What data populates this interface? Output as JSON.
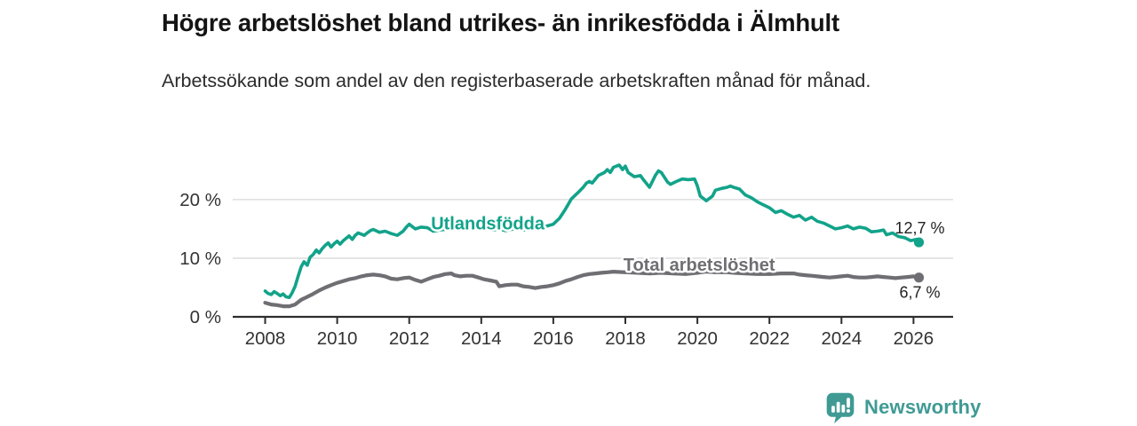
{
  "title": "Högre arbetslöshet bland utrikes- än inrikesfödda i Älmhult",
  "subtitle": "Arbetssökande som andel av den registerbaserade arbetskraften månad för månad.",
  "footer": {
    "brand": "Newsworthy",
    "brand_color": "#3f9a94",
    "logo_icon": "bar-chart-speech-bubble"
  },
  "chart_data": {
    "type": "line",
    "title": "",
    "xlabel": "",
    "ylabel": "",
    "grid": "horizontal",
    "x_axis": {
      "min": 2007.1,
      "max": 2027.1,
      "ticks": [
        2008,
        2010,
        2012,
        2014,
        2016,
        2018,
        2020,
        2022,
        2024,
        2026
      ],
      "tick_labels": [
        "2008",
        "2010",
        "2012",
        "2014",
        "2016",
        "2018",
        "2020",
        "2022",
        "2024",
        "2026"
      ]
    },
    "y_axis": {
      "min": 0,
      "max": 28.3,
      "ticks": [
        0,
        10,
        20
      ],
      "tick_labels": [
        "0 %",
        "10 %",
        "20 %"
      ]
    },
    "colors": {
      "grid": "#d9d9d9",
      "axis": "#2e2e2e",
      "tick_text": "#333333",
      "value_text": "#222222"
    },
    "series": [
      {
        "id": "total",
        "name": "Total arbetslöshet",
        "color": "#6e6e73",
        "width": 4.2,
        "end_label": "6,7 %",
        "end_label_position": "below",
        "label": {
          "x": 2020.05,
          "y": 8.95
        },
        "points": [
          [
            2008.0,
            2.4
          ],
          [
            2008.17,
            2.1
          ],
          [
            2008.33,
            2.0
          ],
          [
            2008.5,
            1.8
          ],
          [
            2008.67,
            1.8
          ],
          [
            2008.83,
            2.1
          ],
          [
            2009.0,
            2.9
          ],
          [
            2009.17,
            3.4
          ],
          [
            2009.33,
            3.9
          ],
          [
            2009.5,
            4.5
          ],
          [
            2009.67,
            5.0
          ],
          [
            2009.83,
            5.4
          ],
          [
            2010.0,
            5.8
          ],
          [
            2010.17,
            6.1
          ],
          [
            2010.33,
            6.4
          ],
          [
            2010.5,
            6.6
          ],
          [
            2010.67,
            6.9
          ],
          [
            2010.83,
            7.1
          ],
          [
            2011.0,
            7.2
          ],
          [
            2011.17,
            7.1
          ],
          [
            2011.33,
            6.9
          ],
          [
            2011.5,
            6.5
          ],
          [
            2011.67,
            6.4
          ],
          [
            2011.83,
            6.6
          ],
          [
            2012.0,
            6.7
          ],
          [
            2012.17,
            6.3
          ],
          [
            2012.33,
            6.0
          ],
          [
            2012.5,
            6.4
          ],
          [
            2012.67,
            6.8
          ],
          [
            2012.83,
            7.0
          ],
          [
            2013.0,
            7.3
          ],
          [
            2013.17,
            7.4
          ],
          [
            2013.25,
            7.1
          ],
          [
            2013.42,
            6.9
          ],
          [
            2013.58,
            7.0
          ],
          [
            2013.75,
            7.0
          ],
          [
            2013.92,
            6.7
          ],
          [
            2014.08,
            6.4
          ],
          [
            2014.25,
            6.2
          ],
          [
            2014.42,
            6.0
          ],
          [
            2014.5,
            5.2
          ],
          [
            2014.67,
            5.4
          ],
          [
            2014.83,
            5.5
          ],
          [
            2015.0,
            5.5
          ],
          [
            2015.17,
            5.2
          ],
          [
            2015.33,
            5.1
          ],
          [
            2015.5,
            4.9
          ],
          [
            2015.67,
            5.1
          ],
          [
            2015.83,
            5.2
          ],
          [
            2016.0,
            5.4
          ],
          [
            2016.17,
            5.7
          ],
          [
            2016.33,
            6.1
          ],
          [
            2016.5,
            6.4
          ],
          [
            2016.67,
            6.8
          ],
          [
            2016.83,
            7.1
          ],
          [
            2017.0,
            7.3
          ],
          [
            2017.17,
            7.4
          ],
          [
            2017.33,
            7.5
          ],
          [
            2017.5,
            7.6
          ],
          [
            2017.67,
            7.7
          ],
          [
            2018.0,
            7.6
          ],
          [
            2018.33,
            7.5
          ],
          [
            2018.67,
            7.4
          ],
          [
            2019.0,
            7.5
          ],
          [
            2019.33,
            7.4
          ],
          [
            2019.67,
            7.3
          ],
          [
            2020.0,
            7.5
          ],
          [
            2020.25,
            7.7
          ],
          [
            2020.5,
            7.6
          ],
          [
            2020.83,
            7.6
          ],
          [
            2021.0,
            7.5
          ],
          [
            2021.33,
            7.4
          ],
          [
            2021.67,
            7.3
          ],
          [
            2022.0,
            7.3
          ],
          [
            2022.33,
            7.4
          ],
          [
            2022.67,
            7.4
          ],
          [
            2022.83,
            7.2
          ],
          [
            2023.0,
            7.1
          ],
          [
            2023.17,
            7.0
          ],
          [
            2023.33,
            6.9
          ],
          [
            2023.5,
            6.8
          ],
          [
            2023.67,
            6.7
          ],
          [
            2023.83,
            6.8
          ],
          [
            2024.0,
            6.9
          ],
          [
            2024.17,
            7.0
          ],
          [
            2024.33,
            6.8
          ],
          [
            2024.5,
            6.7
          ],
          [
            2024.67,
            6.7
          ],
          [
            2024.83,
            6.8
          ],
          [
            2025.0,
            6.9
          ],
          [
            2025.17,
            6.8
          ],
          [
            2025.33,
            6.7
          ],
          [
            2025.5,
            6.6
          ],
          [
            2025.67,
            6.7
          ],
          [
            2025.83,
            6.8
          ],
          [
            2026.0,
            6.9
          ],
          [
            2026.15,
            6.7
          ]
        ]
      },
      {
        "id": "utlandsfodda",
        "name": "Utlandsfödda",
        "color": "#12a38a",
        "width": 3.6,
        "end_label": "12,7 %",
        "end_label_position": "above",
        "label": {
          "x": 2014.18,
          "y": 16.0
        },
        "points": [
          [
            2008.0,
            4.4
          ],
          [
            2008.08,
            4.0
          ],
          [
            2008.17,
            3.8
          ],
          [
            2008.25,
            4.3
          ],
          [
            2008.33,
            4.0
          ],
          [
            2008.42,
            3.6
          ],
          [
            2008.5,
            3.9
          ],
          [
            2008.58,
            3.4
          ],
          [
            2008.67,
            3.3
          ],
          [
            2008.75,
            4.1
          ],
          [
            2008.83,
            5.2
          ],
          [
            2008.92,
            7.0
          ],
          [
            2009.0,
            8.5
          ],
          [
            2009.08,
            9.4
          ],
          [
            2009.17,
            8.8
          ],
          [
            2009.25,
            10.2
          ],
          [
            2009.33,
            10.6
          ],
          [
            2009.42,
            11.4
          ],
          [
            2009.5,
            10.9
          ],
          [
            2009.58,
            11.6
          ],
          [
            2009.67,
            12.2
          ],
          [
            2009.75,
            12.6
          ],
          [
            2009.83,
            11.9
          ],
          [
            2009.92,
            12.5
          ],
          [
            2010.0,
            12.9
          ],
          [
            2010.08,
            12.4
          ],
          [
            2010.17,
            13.0
          ],
          [
            2010.25,
            13.4
          ],
          [
            2010.33,
            13.8
          ],
          [
            2010.42,
            13.2
          ],
          [
            2010.5,
            13.9
          ],
          [
            2010.58,
            14.3
          ],
          [
            2010.67,
            14.1
          ],
          [
            2010.75,
            13.9
          ],
          [
            2010.83,
            14.3
          ],
          [
            2010.92,
            14.7
          ],
          [
            2011.0,
            14.9
          ],
          [
            2011.17,
            14.4
          ],
          [
            2011.33,
            14.6
          ],
          [
            2011.5,
            14.2
          ],
          [
            2011.67,
            13.9
          ],
          [
            2011.83,
            14.6
          ],
          [
            2011.92,
            15.3
          ],
          [
            2012.0,
            15.8
          ],
          [
            2012.08,
            15.4
          ],
          [
            2012.17,
            15.0
          ],
          [
            2012.33,
            15.3
          ],
          [
            2012.5,
            15.2
          ],
          [
            2012.67,
            14.6
          ],
          [
            2012.83,
            14.8
          ],
          [
            2013.0,
            14.9
          ],
          [
            2013.17,
            15.2
          ],
          [
            2013.33,
            15.5
          ],
          [
            2013.5,
            15.3
          ],
          [
            2013.67,
            15.0
          ],
          [
            2013.83,
            15.2
          ],
          [
            2014.0,
            15.4
          ],
          [
            2014.17,
            15.1
          ],
          [
            2014.33,
            14.8
          ],
          [
            2014.5,
            15.0
          ],
          [
            2014.67,
            14.7
          ],
          [
            2014.83,
            14.9
          ],
          [
            2015.0,
            15.1
          ],
          [
            2015.17,
            14.8
          ],
          [
            2015.33,
            15.0
          ],
          [
            2015.5,
            15.4
          ],
          [
            2015.67,
            15.2
          ],
          [
            2015.83,
            15.5
          ],
          [
            2016.0,
            15.8
          ],
          [
            2016.17,
            16.8
          ],
          [
            2016.33,
            18.3
          ],
          [
            2016.5,
            20.1
          ],
          [
            2016.67,
            21.1
          ],
          [
            2016.83,
            22.1
          ],
          [
            2016.92,
            22.8
          ],
          [
            2017.0,
            23.1
          ],
          [
            2017.08,
            22.8
          ],
          [
            2017.25,
            24.1
          ],
          [
            2017.42,
            24.6
          ],
          [
            2017.5,
            25.1
          ],
          [
            2017.58,
            24.6
          ],
          [
            2017.67,
            25.5
          ],
          [
            2017.83,
            25.9
          ],
          [
            2017.92,
            25.1
          ],
          [
            2018.0,
            25.7
          ],
          [
            2018.08,
            24.6
          ],
          [
            2018.25,
            23.9
          ],
          [
            2018.42,
            24.1
          ],
          [
            2018.5,
            23.4
          ],
          [
            2018.67,
            22.1
          ],
          [
            2018.83,
            24.1
          ],
          [
            2018.92,
            24.9
          ],
          [
            2019.0,
            24.6
          ],
          [
            2019.17,
            23.0
          ],
          [
            2019.25,
            22.6
          ],
          [
            2019.42,
            23.1
          ],
          [
            2019.58,
            23.5
          ],
          [
            2019.75,
            23.4
          ],
          [
            2019.92,
            23.5
          ],
          [
            2020.0,
            22.3
          ],
          [
            2020.08,
            20.6
          ],
          [
            2020.25,
            19.8
          ],
          [
            2020.42,
            20.6
          ],
          [
            2020.5,
            21.6
          ],
          [
            2020.67,
            21.9
          ],
          [
            2020.83,
            22.1
          ],
          [
            2020.92,
            22.3
          ],
          [
            2021.0,
            22.1
          ],
          [
            2021.17,
            21.8
          ],
          [
            2021.33,
            20.8
          ],
          [
            2021.5,
            20.3
          ],
          [
            2021.67,
            19.6
          ],
          [
            2021.83,
            19.1
          ],
          [
            2022.0,
            18.6
          ],
          [
            2022.17,
            17.8
          ],
          [
            2022.33,
            18.1
          ],
          [
            2022.5,
            17.5
          ],
          [
            2022.67,
            17.0
          ],
          [
            2022.83,
            17.3
          ],
          [
            2023.0,
            16.5
          ],
          [
            2023.17,
            17.0
          ],
          [
            2023.33,
            16.3
          ],
          [
            2023.5,
            16.0
          ],
          [
            2023.67,
            15.5
          ],
          [
            2023.83,
            15.0
          ],
          [
            2024.0,
            15.2
          ],
          [
            2024.17,
            15.5
          ],
          [
            2024.33,
            15.0
          ],
          [
            2024.5,
            15.3
          ],
          [
            2024.67,
            15.1
          ],
          [
            2024.83,
            14.5
          ],
          [
            2025.0,
            14.6
          ],
          [
            2025.17,
            14.8
          ],
          [
            2025.25,
            14.0
          ],
          [
            2025.42,
            14.3
          ],
          [
            2025.58,
            13.7
          ],
          [
            2025.75,
            13.5
          ],
          [
            2025.92,
            13.0
          ],
          [
            2026.08,
            13.2
          ],
          [
            2026.15,
            12.7
          ]
        ]
      }
    ]
  }
}
